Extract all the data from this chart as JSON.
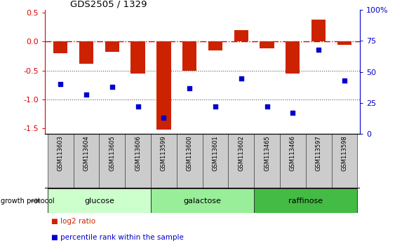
{
  "title": "GDS2505 / 1329",
  "samples": [
    "GSM113603",
    "GSM113604",
    "GSM113605",
    "GSM113606",
    "GSM113599",
    "GSM113600",
    "GSM113601",
    "GSM113602",
    "GSM113465",
    "GSM113466",
    "GSM113597",
    "GSM113598"
  ],
  "log2_ratio": [
    -0.2,
    -0.38,
    -0.18,
    -0.55,
    -1.52,
    -0.5,
    -0.15,
    0.2,
    -0.12,
    -0.55,
    0.38,
    -0.05
  ],
  "percentile_rank": [
    40,
    32,
    38,
    22,
    13,
    37,
    22,
    45,
    22,
    17,
    68,
    43
  ],
  "groups": [
    {
      "label": "glucose",
      "start": 0,
      "end": 4,
      "color": "#ccffcc"
    },
    {
      "label": "galactose",
      "start": 4,
      "end": 8,
      "color": "#99ee99"
    },
    {
      "label": "raffinose",
      "start": 8,
      "end": 12,
      "color": "#44bb44"
    }
  ],
  "bar_color": "#cc2200",
  "dot_color": "#0000cc",
  "ylim_left": [
    -1.6,
    0.55
  ],
  "ylim_right": [
    0,
    100
  ],
  "yticks_left": [
    -1.5,
    -1.0,
    -0.5,
    0.0,
    0.5
  ],
  "yticks_right": [
    0,
    25,
    50,
    75,
    100
  ],
  "right_tick_labels": [
    "0",
    "25",
    "50",
    "75",
    "100%"
  ],
  "hline_color": "#dd0000",
  "dotted_line_color": "#555555",
  "growth_protocol_label": "growth protocol",
  "legend_log2": "■ log2 ratio",
  "legend_pct": "■ percentile rank within the sample",
  "sample_box_color": "#cccccc",
  "sample_box_edge": "#555555"
}
